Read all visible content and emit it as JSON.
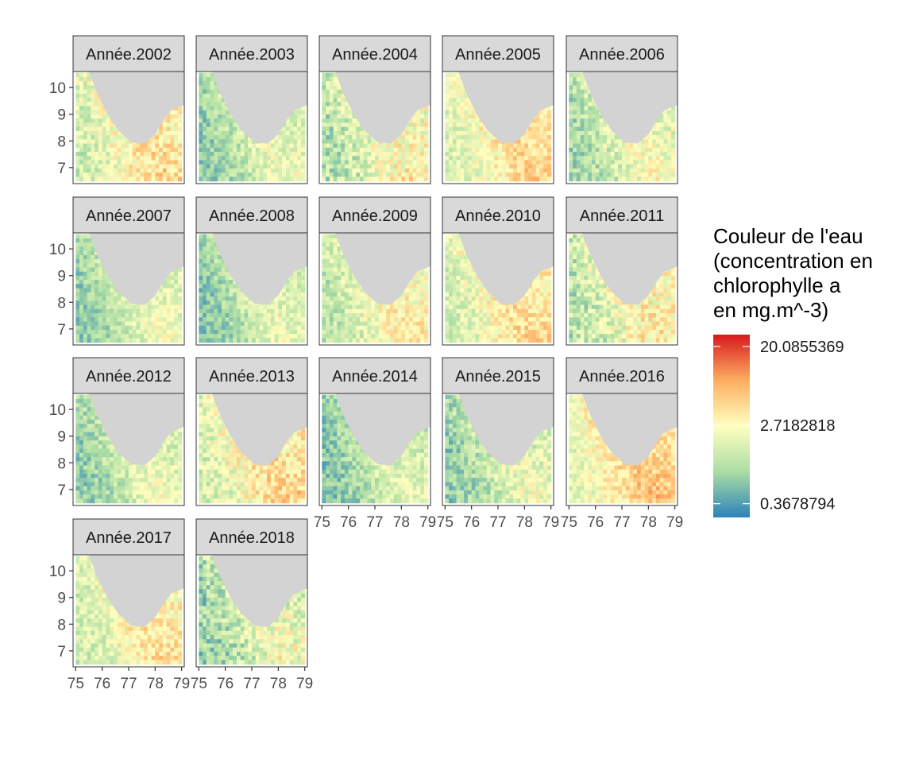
{
  "chart_data": {
    "type": "heatmap",
    "description_kind": "faceted raster maps",
    "colors": {
      "land": "#d3d3d3",
      "strip_fill": "#d9d9d9",
      "panel_border": "#333333",
      "tick_text": "#4d4d4d",
      "scale": [
        "#2b83ba",
        "#abdda4",
        "#ffffbf",
        "#fdae61",
        "#d7191c"
      ]
    },
    "axes": {
      "x": {
        "ticks": [
          "75",
          "76",
          "77",
          "78",
          "79"
        ],
        "range": [
          74.9,
          79.1
        ]
      },
      "y": {
        "ticks": [
          "7",
          "8",
          "9",
          "10"
        ],
        "range": [
          6.4,
          10.6
        ]
      }
    },
    "legend": {
      "title_lines": [
        "Couleur de l'eau",
        "(concentration en",
        "chlorophylle a",
        "en mg.m^-3)"
      ],
      "labels": [
        "20.0855369",
        "2.7182818",
        "0.3678794"
      ],
      "label_values": [
        20.0855369,
        2.7182818,
        0.3678794
      ],
      "placement": "right"
    },
    "facets": [
      {
        "label": "Année.2002",
        "mean_level": 0.45,
        "variability": 0.18
      },
      {
        "label": "Année.2003",
        "mean_level": 0.3,
        "variability": 0.15
      },
      {
        "label": "Année.2004",
        "mean_level": 0.38,
        "variability": 0.2
      },
      {
        "label": "Année.2005",
        "mean_level": 0.48,
        "variability": 0.14
      },
      {
        "label": "Année.2006",
        "mean_level": 0.34,
        "variability": 0.16
      },
      {
        "label": "Année.2007",
        "mean_level": 0.3,
        "variability": 0.14
      },
      {
        "label": "Année.2008",
        "mean_level": 0.28,
        "variability": 0.14
      },
      {
        "label": "Année.2009",
        "mean_level": 0.4,
        "variability": 0.16
      },
      {
        "label": "Année.2010",
        "mean_level": 0.46,
        "variability": 0.16
      },
      {
        "label": "Année.2011",
        "mean_level": 0.4,
        "variability": 0.2
      },
      {
        "label": "Année.2012",
        "mean_level": 0.3,
        "variability": 0.15
      },
      {
        "label": "Année.2013",
        "mean_level": 0.47,
        "variability": 0.18
      },
      {
        "label": "Année.2014",
        "mean_level": 0.27,
        "variability": 0.15
      },
      {
        "label": "Année.2015",
        "mean_level": 0.3,
        "variability": 0.16
      },
      {
        "label": "Année.2016",
        "mean_level": 0.52,
        "variability": 0.14
      },
      {
        "label": "Année.2017",
        "mean_level": 0.44,
        "variability": 0.16
      },
      {
        "label": "Année.2018",
        "mean_level": 0.32,
        "variability": 0.2
      }
    ]
  }
}
